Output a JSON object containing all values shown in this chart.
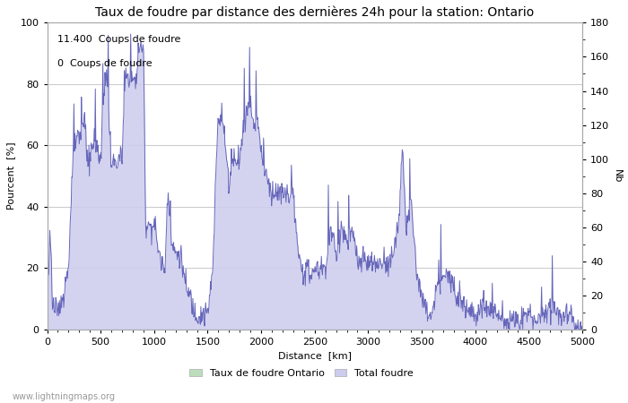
{
  "title": "Taux de foudre par distance des dernières 24h pour la station: Ontario",
  "xlabel": "Distance  [km]",
  "ylabel_left": "Pourcent  [%]",
  "ylabel_right": "Nb",
  "annotation_line1": "11.400  Coups de foudre",
  "annotation_line2": "0  Coups de foudre",
  "xlim": [
    0,
    5000
  ],
  "ylim_left": [
    0,
    100
  ],
  "ylim_right": [
    0,
    180
  ],
  "xticks": [
    0,
    500,
    1000,
    1500,
    2000,
    2500,
    3000,
    3500,
    4000,
    4500,
    5000
  ],
  "yticks_left": [
    0,
    20,
    40,
    60,
    80,
    100
  ],
  "yticks_right": [
    0,
    20,
    40,
    60,
    80,
    100,
    120,
    140,
    160,
    180
  ],
  "line_color": "#6666bb",
  "fill_color": "#ccccee",
  "fill_alpha": 0.85,
  "green_patch_color": "#bbddbb",
  "legend_label_green": "Taux de foudre Ontario",
  "legend_label_blue": "Total foudre",
  "watermark": "www.lightningmaps.org",
  "bg_color": "#ffffff",
  "grid_color": "#cccccc",
  "title_fontsize": 10,
  "axis_fontsize": 8,
  "tick_fontsize": 8,
  "annotation_fontsize": 8
}
